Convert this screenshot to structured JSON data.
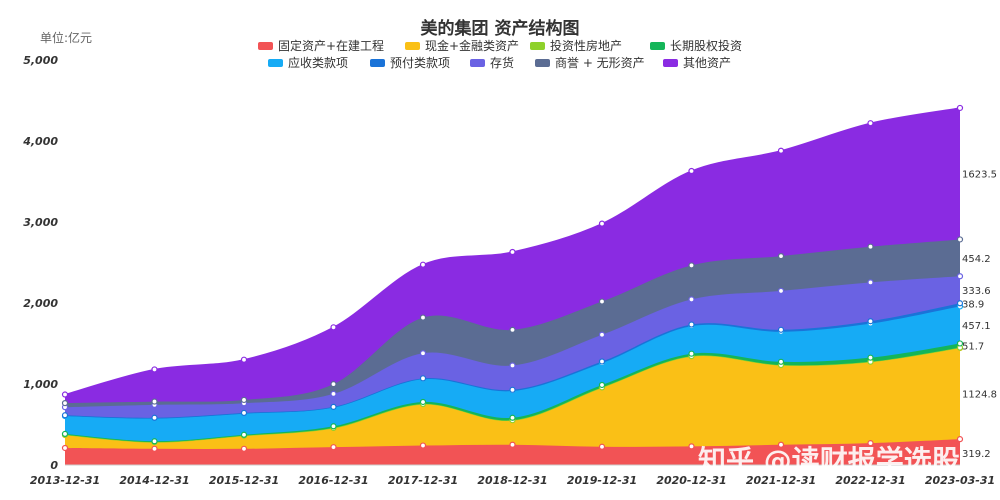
{
  "chart_data": {
    "type": "area",
    "title": "美的集团 资产结构图",
    "unit_label": "单位:亿元",
    "ylim": [
      0,
      5000
    ],
    "yticks": [
      "0",
      "1,000",
      "2,000",
      "3,000",
      "4,000",
      "5,000"
    ],
    "ytick_values": [
      0,
      1000,
      2000,
      3000,
      4000,
      5000
    ],
    "x": [
      "2013-12-31",
      "2014-12-31",
      "2015-12-31",
      "2016-12-31",
      "2017-12-31",
      "2018-12-31",
      "2019-12-31",
      "2020-12-31",
      "2021-12-31",
      "2022-12-31",
      "2023-03-31"
    ],
    "legend_placement": "top-center",
    "series": [
      {
        "name": "固定资产+在建工程",
        "color": "#f25355",
        "values": [
          210,
          200,
          200,
          220,
          240,
          250,
          225,
          230,
          250,
          270,
          319.2
        ]
      },
      {
        "name": "现金+金融类资产",
        "color": "#fac016",
        "values": [
          160,
          80,
          160,
          235,
          510,
          300,
          730,
          1110,
          980,
          1000,
          1124.8
        ]
      },
      {
        "name": "投资性房地产",
        "color": "#8ed12a",
        "values": [
          4,
          3,
          3,
          3,
          3,
          3,
          3,
          4,
          4,
          5,
          5
        ]
      },
      {
        "name": "长期股权投资",
        "color": "#14b559",
        "values": [
          10,
          10,
          10,
          20,
          25,
          30,
          30,
          30,
          40,
          50,
          51.7
        ]
      },
      {
        "name": "应收类款项",
        "color": "#16abf5",
        "values": [
          220,
          280,
          260,
          230,
          280,
          330,
          270,
          340,
          370,
          420,
          457.1
        ]
      },
      {
        "name": "预付类款项",
        "color": "#1a73d8",
        "values": [
          10,
          10,
          10,
          10,
          12,
          15,
          20,
          20,
          25,
          30,
          38.9
        ]
      },
      {
        "name": "存货",
        "color": "#6a62e3",
        "values": [
          100,
          160,
          120,
          160,
          310,
          300,
          330,
          310,
          480,
          480,
          333.6
        ]
      },
      {
        "name": "商誉 + 无形资产",
        "color": "#5b6c93",
        "values": [
          50,
          40,
          40,
          120,
          440,
          440,
          410,
          420,
          430,
          440,
          454.2
        ]
      },
      {
        "name": "其他资产",
        "color": "#8a2be2",
        "values": [
          106,
          397,
          497,
          702,
          653,
          962,
          962,
          1166,
          1301,
          1525,
          1623.5
        ]
      }
    ],
    "end_labels": [
      "319.2",
      "1124.8",
      "51.7",
      "457.1",
      "38.9",
      "333.6",
      "454.2",
      "1623.5"
    ],
    "grid": false
  },
  "watermark": "知乎 @读财报学选股"
}
